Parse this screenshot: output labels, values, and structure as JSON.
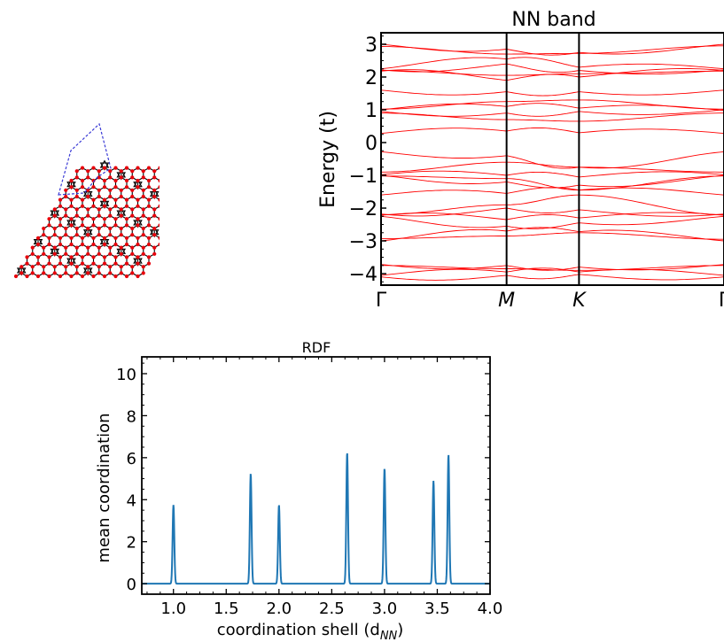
{
  "lattice": {
    "atom_color": "#e8000b",
    "bond_color": "#000000",
    "cell_color": "#3b3bd6",
    "icon": "honeycomb-supercell-lattice"
  },
  "chart_data": [
    {
      "type": "line",
      "title": "NN band",
      "ylabel": "Energy (t)",
      "xlabel": "",
      "ylim": [
        -4.35,
        3.35
      ],
      "yticks": [
        -4,
        -3,
        -2,
        -1,
        0,
        1,
        2,
        3
      ],
      "ytick_labels": [
        "−4",
        "−3",
        "−2",
        "−1",
        "0",
        "1",
        "2",
        "3"
      ],
      "kpath_labels": [
        "Γ",
        "M",
        "K",
        "Γ"
      ],
      "kpath_positions": [
        0,
        1,
        1.577,
        2.732
      ],
      "line_color": "#ff0000",
      "grid": false,
      "bands": [
        [
          3.0,
          2.85,
          2.75,
          3.0
        ],
        [
          2.93,
          2.7,
          2.72,
          2.95
        ],
        [
          2.25,
          2.55,
          2.3,
          2.25
        ],
        [
          2.22,
          2.4,
          2.2,
          2.22
        ],
        [
          2.2,
          2.05,
          2.1,
          2.18
        ],
        [
          2.18,
          1.9,
          2.0,
          2.2
        ],
        [
          1.6,
          1.55,
          1.55,
          1.6
        ],
        [
          1.02,
          1.25,
          1.3,
          1.02
        ],
        [
          1.0,
          1.1,
          1.05,
          0.98
        ],
        [
          0.95,
          0.9,
          0.95,
          1.0
        ],
        [
          0.9,
          0.7,
          0.65,
          0.9
        ],
        [
          0.28,
          0.35,
          0.3,
          0.28
        ],
        [
          -0.28,
          -0.4,
          -0.75,
          -0.28
        ],
        [
          -0.9,
          -0.6,
          -0.75,
          -0.9
        ],
        [
          -0.98,
          -1.0,
          -1.05,
          -0.98
        ],
        [
          -1.0,
          -1.2,
          -1.3,
          -1.0
        ],
        [
          -1.02,
          -1.1,
          -1.45,
          -1.02
        ],
        [
          -1.6,
          -1.55,
          -1.45,
          -1.6
        ],
        [
          -2.18,
          -2.0,
          -2.05,
          -2.18
        ],
        [
          -2.2,
          -1.9,
          -1.6,
          -2.2
        ],
        [
          -2.22,
          -2.35,
          -2.3,
          -2.22
        ],
        [
          -2.25,
          -2.55,
          -2.45,
          -2.25
        ],
        [
          -2.93,
          -2.85,
          -2.75,
          -2.95
        ],
        [
          -3.0,
          -2.7,
          -2.72,
          -3.0
        ],
        [
          -3.72,
          -3.75,
          -3.8,
          -3.72
        ],
        [
          -3.75,
          -3.85,
          -3.9,
          -3.75
        ],
        [
          -4.05,
          -3.95,
          -3.95,
          -4.05
        ],
        [
          -4.1,
          -4.05,
          -4.02,
          -4.1
        ]
      ]
    },
    {
      "type": "line",
      "title": "RDF",
      "xlabel": "coordination shell (d",
      "xlabel_subscript": "NN",
      "xlabel_close": ")",
      "ylabel": "mean coordination",
      "xlim": [
        0.7,
        4.0
      ],
      "ylim": [
        -0.5,
        10.8
      ],
      "xticks": [
        1.0,
        1.5,
        2.0,
        2.5,
        3.0,
        3.5,
        4.0
      ],
      "xtick_labels": [
        "1.0",
        "1.5",
        "2.0",
        "2.5",
        "3.0",
        "3.5",
        "4.0"
      ],
      "yticks": [
        0,
        2,
        4,
        6,
        8,
        10
      ],
      "ytick_labels": [
        "0",
        "2",
        "4",
        "6",
        "8",
        "10"
      ],
      "line_color": "#1f77b4",
      "grid": false,
      "peaks": [
        {
          "x": 1.0,
          "y": 3.75
        },
        {
          "x": 1.732,
          "y": 5.25
        },
        {
          "x": 2.0,
          "y": 3.75
        },
        {
          "x": 2.646,
          "y": 6.25
        },
        {
          "x": 3.0,
          "y": 5.5
        },
        {
          "x": 3.464,
          "y": 4.9
        },
        {
          "x": 3.606,
          "y": 6.15
        }
      ]
    }
  ]
}
